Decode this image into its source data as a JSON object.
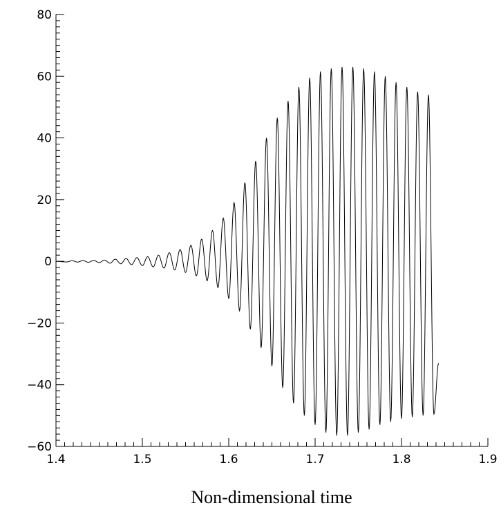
{
  "chart_data": {
    "type": "line",
    "title": "",
    "xlabel": "Non-dimensional time",
    "ylabel": "",
    "xlim": [
      1.4,
      1.9
    ],
    "ylim": [
      -60,
      80
    ],
    "x_ticks": [
      1.4,
      1.5,
      1.6,
      1.7,
      1.8,
      1.9
    ],
    "x_tick_labels": [
      "1.4",
      "1.5",
      "1.6",
      "1.7",
      "1.8",
      "1.9"
    ],
    "y_ticks": [
      -60,
      -40,
      -20,
      0,
      20,
      40,
      60,
      80
    ],
    "y_tick_labels": [
      "−60",
      "−40",
      "−20",
      "0",
      "20",
      "40",
      "60",
      "80"
    ],
    "grid": false,
    "series": [
      {
        "x_start": 1.4,
        "x_end": 1.843,
        "oscillation_period": 0.0125,
        "final_value": -33,
        "peaks": [
          [
            1.4187,
            0.2
          ],
          [
            1.4312,
            0.25
          ],
          [
            1.4437,
            0.3
          ],
          [
            1.4562,
            0.4
          ],
          [
            1.4687,
            0.7
          ],
          [
            1.4812,
            0.9
          ],
          [
            1.4937,
            1.2
          ],
          [
            1.5062,
            1.5
          ],
          [
            1.5187,
            2.0
          ],
          [
            1.5312,
            2.8
          ],
          [
            1.5437,
            3.8
          ],
          [
            1.5562,
            5.2
          ],
          [
            1.5687,
            7.2
          ],
          [
            1.5812,
            10.0
          ],
          [
            1.5937,
            14.0
          ],
          [
            1.6062,
            19.0
          ],
          [
            1.6187,
            25.5
          ],
          [
            1.6312,
            32.5
          ],
          [
            1.6437,
            40.0
          ],
          [
            1.6562,
            46.5
          ],
          [
            1.6687,
            52.0
          ],
          [
            1.6812,
            56.5
          ],
          [
            1.6937,
            59.5
          ],
          [
            1.7062,
            61.5
          ],
          [
            1.7187,
            62.5
          ],
          [
            1.7312,
            63.0
          ],
          [
            1.7437,
            63.0
          ],
          [
            1.7562,
            62.5
          ],
          [
            1.7687,
            61.5
          ],
          [
            1.7812,
            60.0
          ],
          [
            1.7937,
            58.0
          ],
          [
            1.8062,
            56.5
          ],
          [
            1.8187,
            55.0
          ],
          [
            1.8312,
            54.0
          ]
        ],
        "troughs": [
          [
            1.4125,
            -0.2
          ],
          [
            1.425,
            -0.25
          ],
          [
            1.4375,
            -0.3
          ],
          [
            1.45,
            -0.4
          ],
          [
            1.4625,
            -0.6
          ],
          [
            1.475,
            -0.8
          ],
          [
            1.4875,
            -1.1
          ],
          [
            1.5,
            -1.4
          ],
          [
            1.5125,
            -1.8
          ],
          [
            1.525,
            -2.2
          ],
          [
            1.5375,
            -2.8
          ],
          [
            1.55,
            -3.6
          ],
          [
            1.5625,
            -4.7
          ],
          [
            1.575,
            -6.3
          ],
          [
            1.5875,
            -8.5
          ],
          [
            1.6,
            -12.0
          ],
          [
            1.6125,
            -16.0
          ],
          [
            1.625,
            -22.0
          ],
          [
            1.6375,
            -28.0
          ],
          [
            1.65,
            -34.0
          ],
          [
            1.6625,
            -41.0
          ],
          [
            1.675,
            -46.0
          ],
          [
            1.6875,
            -50.0
          ],
          [
            1.7,
            -53.0
          ],
          [
            1.7125,
            -55.5
          ],
          [
            1.725,
            -56.5
          ],
          [
            1.7375,
            -56.5
          ],
          [
            1.75,
            -55.5
          ],
          [
            1.7625,
            -54.5
          ],
          [
            1.775,
            -53.0
          ],
          [
            1.7875,
            -52.0
          ],
          [
            1.8,
            -51.0
          ],
          [
            1.8125,
            -50.5
          ],
          [
            1.825,
            -50.0
          ],
          [
            1.8375,
            -49.5
          ]
        ]
      }
    ]
  }
}
